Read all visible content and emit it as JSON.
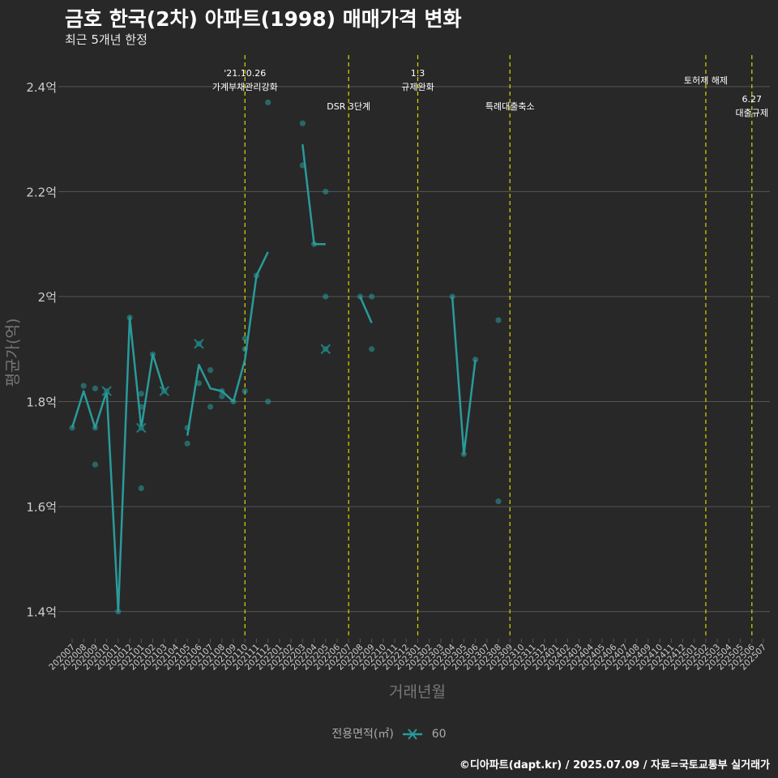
{
  "title": "금호 한국(2차) 아파트(1998) 매매가격 변화",
  "subtitle": "최근 5개년 한정",
  "caption": "©디아파트(dapt.kr) / 2025.07.09 / 자료=국토교통부 실거래가",
  "legend": {
    "title": "전용면적(㎡)",
    "entries": [
      "60"
    ]
  },
  "colors": {
    "background": "#282828",
    "grid": "#555555",
    "series": "#2a9a9a",
    "event_line": "#d8d800",
    "axis_text": "#cccccc",
    "axis_title": "#777777"
  },
  "chart_data": {
    "type": "line",
    "title": "금호 한국(2차) 아파트(1998) 매매가격 변화",
    "xlabel": "거래년월",
    "ylabel": "평균가(억)",
    "categories": [
      "202007",
      "202008",
      "202009",
      "202010",
      "202011",
      "202012",
      "202101",
      "202102",
      "202103",
      "202104",
      "202105",
      "202106",
      "202107",
      "202108",
      "202109",
      "202110",
      "202111",
      "202112",
      "202201",
      "202202",
      "202203",
      "202204",
      "202205",
      "202206",
      "202207",
      "202208",
      "202209",
      "202210",
      "202211",
      "202212",
      "202301",
      "202302",
      "202303",
      "202304",
      "202305",
      "202306",
      "202307",
      "202308",
      "202309",
      "202310",
      "202311",
      "202312",
      "202401",
      "202402",
      "202403",
      "202404",
      "202405",
      "202406",
      "202407",
      "202408",
      "202409",
      "202410",
      "202411",
      "202412",
      "202501",
      "202502",
      "202503",
      "202504",
      "202505",
      "202506",
      "202507"
    ],
    "ylim": [
      1.35,
      2.46
    ],
    "yticks": [
      1.4,
      1.6,
      1.8,
      2.0,
      2.2,
      2.4
    ],
    "ytick_labels": [
      "1.4억",
      "1.6억",
      "1.8억",
      "2억",
      "2.2억",
      "2.4억"
    ],
    "series": [
      {
        "name": "60",
        "line_segments": [
          [
            [
              "202007",
              1.75
            ],
            [
              "202008",
              1.82
            ],
            [
              "202009",
              1.75
            ],
            [
              "202010",
              1.82
            ],
            [
              "202011",
              1.4
            ],
            [
              "202012",
              1.96
            ],
            [
              "202101",
              1.75
            ],
            [
              "202102",
              1.89
            ],
            [
              "202103",
              1.82
            ]
          ],
          [
            [
              "202105",
              1.735
            ],
            [
              "202106",
              1.87
            ],
            [
              "202107",
              1.825
            ],
            [
              "202108",
              1.82
            ],
            [
              "202109",
              1.8
            ],
            [
              "202110",
              1.88
            ],
            [
              "202111",
              2.04
            ],
            [
              "202112",
              2.085
            ]
          ],
          [
            [
              "202203",
              2.29
            ],
            [
              "202204",
              2.1
            ],
            [
              "202205",
              2.1
            ]
          ],
          [
            [
              "202208",
              2.0
            ],
            [
              "202209",
              1.95
            ]
          ],
          [
            [
              "202304",
              2.0
            ],
            [
              "202305",
              1.7
            ],
            [
              "202306",
              1.88
            ]
          ]
        ],
        "points": [
          [
            "202007",
            1.75
          ],
          [
            "202008",
            1.83
          ],
          [
            "202009",
            1.825
          ],
          [
            "202009",
            1.75
          ],
          [
            "202009",
            1.68
          ],
          [
            "202010",
            1.82
          ],
          [
            "202011",
            1.4
          ],
          [
            "202012",
            1.96
          ],
          [
            "202101",
            1.815
          ],
          [
            "202101",
            1.79
          ],
          [
            "202101",
            1.75
          ],
          [
            "202101",
            1.635
          ],
          [
            "202102",
            1.89
          ],
          [
            "202103",
            1.82
          ],
          [
            "202105",
            1.75
          ],
          [
            "202105",
            1.72
          ],
          [
            "202106",
            1.91
          ],
          [
            "202106",
            1.835
          ],
          [
            "202107",
            1.86
          ],
          [
            "202107",
            1.79
          ],
          [
            "202108",
            1.82
          ],
          [
            "202108",
            1.81
          ],
          [
            "202109",
            1.8
          ],
          [
            "202110",
            1.92
          ],
          [
            "202110",
            1.9
          ],
          [
            "202110",
            1.82
          ],
          [
            "202111",
            2.04
          ],
          [
            "202112",
            2.37
          ],
          [
            "202112",
            1.8
          ],
          [
            "202203",
            2.33
          ],
          [
            "202203",
            2.25
          ],
          [
            "202204",
            2.1
          ],
          [
            "202205",
            2.2
          ],
          [
            "202205",
            2.0
          ],
          [
            "202205",
            1.9
          ],
          [
            "202208",
            2.0
          ],
          [
            "202209",
            2.0
          ],
          [
            "202209",
            1.9
          ],
          [
            "202304",
            2.0
          ],
          [
            "202305",
            1.7
          ],
          [
            "202306",
            1.88
          ],
          [
            "202308",
            1.955
          ],
          [
            "202308",
            1.61
          ]
        ],
        "x_markers": [
          [
            "202010",
            1.82
          ],
          [
            "202101",
            1.75
          ],
          [
            "202103",
            1.82
          ],
          [
            "202106",
            1.91
          ],
          [
            "202205",
            1.9
          ]
        ]
      }
    ],
    "events": [
      {
        "month": "202110",
        "label_lines": [
          "'21.10.26",
          "가계부채관리강화"
        ],
        "level": "high"
      },
      {
        "month": "202207",
        "label_lines": [
          "DSR 3단계"
        ],
        "level": "low"
      },
      {
        "month": "202301",
        "label_lines": [
          "1.3",
          "규제완화"
        ],
        "level": "high"
      },
      {
        "month": "202309",
        "label_lines": [
          "특례대출축소"
        ],
        "level": "low"
      },
      {
        "month": "202502",
        "label_lines": [
          "토허제 해제"
        ],
        "level": "mid"
      },
      {
        "month": "202506",
        "label_lines": [
          "6.27",
          "대출규제"
        ],
        "level": "low"
      }
    ]
  }
}
